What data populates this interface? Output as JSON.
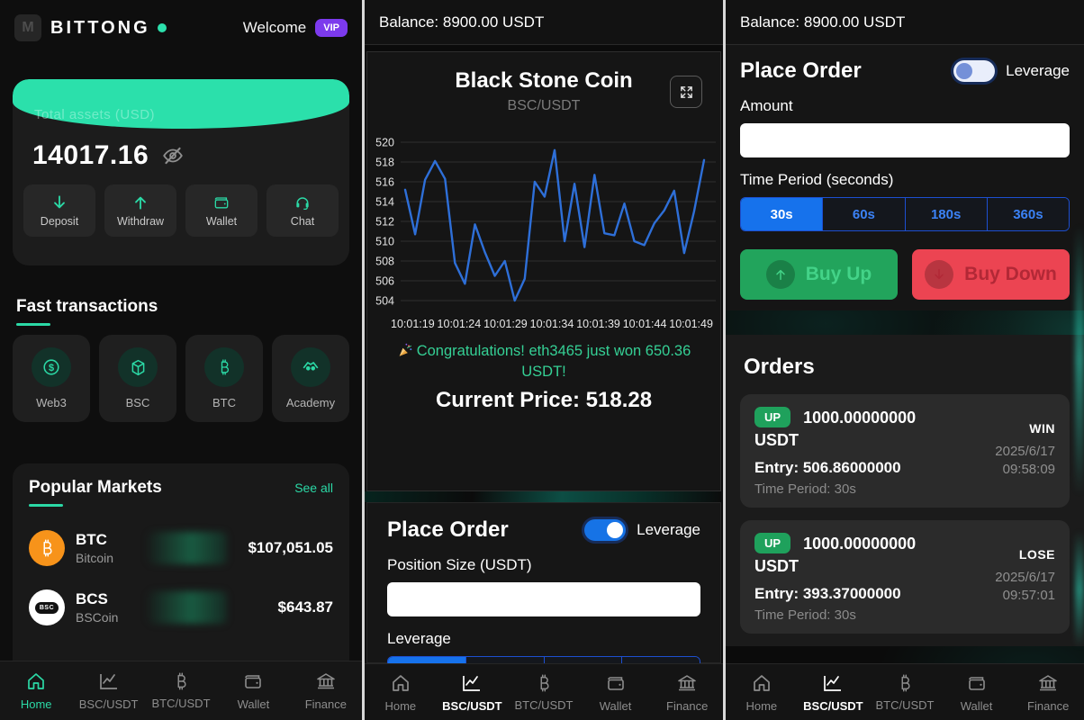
{
  "left": {
    "brand": "BITTONG",
    "logo_letter": "M",
    "welcome": "Welcome",
    "vip_badge": "VIP",
    "assets": {
      "label": "Total assets  (USD)",
      "value": "14017.16"
    },
    "actions": [
      {
        "label": "Deposit",
        "icon": "deposit-arrow-icon"
      },
      {
        "label": "Withdraw",
        "icon": "withdraw-arrow-icon"
      },
      {
        "label": "Wallet",
        "icon": "wallet-icon"
      },
      {
        "label": "Chat",
        "icon": "headset-icon"
      }
    ],
    "fast_transactions": {
      "title": "Fast transactions",
      "items": [
        {
          "label": "Web3",
          "icon": "dollar-icon"
        },
        {
          "label": "BSC",
          "icon": "cube-icon"
        },
        {
          "label": "BTC",
          "icon": "bitcoin-icon"
        },
        {
          "label": "Academy",
          "icon": "handshake-icon"
        }
      ]
    },
    "popular_markets": {
      "title": "Popular Markets",
      "see_all": "See all",
      "rows": [
        {
          "symbol": "BTC",
          "name": "Bitcoin",
          "price": "$107,051.05",
          "icon": "btc-coin-icon"
        },
        {
          "symbol": "BCS",
          "name": "BSCoin",
          "price": "$643.87",
          "icon": "bcs-coin-icon",
          "pill_text": "BSC"
        }
      ]
    },
    "nav_active": "Home"
  },
  "middle": {
    "balance": "Balance: 8900.00 USDT",
    "chart_header": {
      "title": "Black Stone Coin",
      "pair": "BSC/USDT",
      "expand_icon": "expand-icon"
    },
    "congrats": "Congratulations! eth3465 just won 650.36 USDT!",
    "current_price": "Current Price: 518.28",
    "place_order": {
      "title": "Place Order",
      "leverage_toggle_label": "Leverage",
      "leverage_on": true,
      "position_size_label": "Position Size (USDT)",
      "position_size_value": "",
      "leverage_section_label": "Leverage"
    },
    "nav_active": "BSC/USDT"
  },
  "right": {
    "balance": "Balance: 8900.00 USDT",
    "place_order": {
      "title": "Place Order",
      "leverage_toggle_label": "Leverage",
      "leverage_on": false,
      "amount_label": "Amount",
      "amount_value": "",
      "time_period_label": "Time Period (seconds)",
      "periods": [
        "30s",
        "60s",
        "180s",
        "360s"
      ],
      "active_period": "30s",
      "buy_up": "Buy Up",
      "buy_down": "Buy Down"
    },
    "orders": {
      "title": "Orders",
      "items": [
        {
          "direction": "UP",
          "amount": "1000.00000000",
          "currency": "USDT",
          "entry": "Entry: 506.86000000",
          "time_period": "Time Period: 30s",
          "result": "WIN",
          "date": "2025/6/17",
          "time": "09:58:09"
        },
        {
          "direction": "UP",
          "amount": "1000.00000000",
          "currency": "USDT",
          "entry": "Entry: 393.37000000",
          "time_period": "Time Period: 30s",
          "result": "LOSE",
          "date": "2025/6/17",
          "time": "09:57:01"
        }
      ]
    },
    "nav_active": "BSC/USDT"
  },
  "nav": {
    "items": [
      {
        "label": "Home",
        "icon": "home-icon"
      },
      {
        "label": "BSC/USDT",
        "icon": "line-chart-icon"
      },
      {
        "label": "BTC/USDT",
        "icon": "bitcoin-icon"
      },
      {
        "label": "Wallet",
        "icon": "wallet-icon"
      },
      {
        "label": "Finance",
        "icon": "bank-icon"
      }
    ]
  },
  "chart_data": {
    "type": "line",
    "title": "Black Stone Coin",
    "subtitle": "BSC/USDT",
    "x_labels": [
      "10:01:19",
      "10:01:24",
      "10:01:29",
      "10:01:34",
      "10:01:39",
      "10:01:44",
      "10:01:49"
    ],
    "values": [
      515.2,
      510.7,
      516.2,
      518.1,
      516.3,
      507.8,
      505.7,
      511.7,
      508.9,
      506.5,
      508.0,
      504.0,
      506.2,
      516.0,
      514.5,
      519.2,
      510.0,
      515.8,
      509.4,
      516.7,
      510.8,
      510.6,
      513.8,
      510.0,
      509.6,
      511.8,
      513.1,
      515.1,
      508.8,
      513.0,
      518.2
    ],
    "yticks": [
      504,
      506,
      508,
      510,
      512,
      514,
      516,
      518,
      520
    ],
    "ylim": [
      503,
      521
    ],
    "grid": true,
    "legend": false,
    "line_color": "#2e6fd8",
    "current_price": 518.28
  },
  "colors": {
    "accent_teal": "#2bd9a6",
    "banner_green": "#2be0ab",
    "blue": "#1673e6",
    "buy_up_green": "#22a45c",
    "buy_down_red": "#ec4452",
    "vip_purple": "#7c3aed",
    "chart_line_blue": "#2e6fd8",
    "congrats_green": "#35d095"
  }
}
